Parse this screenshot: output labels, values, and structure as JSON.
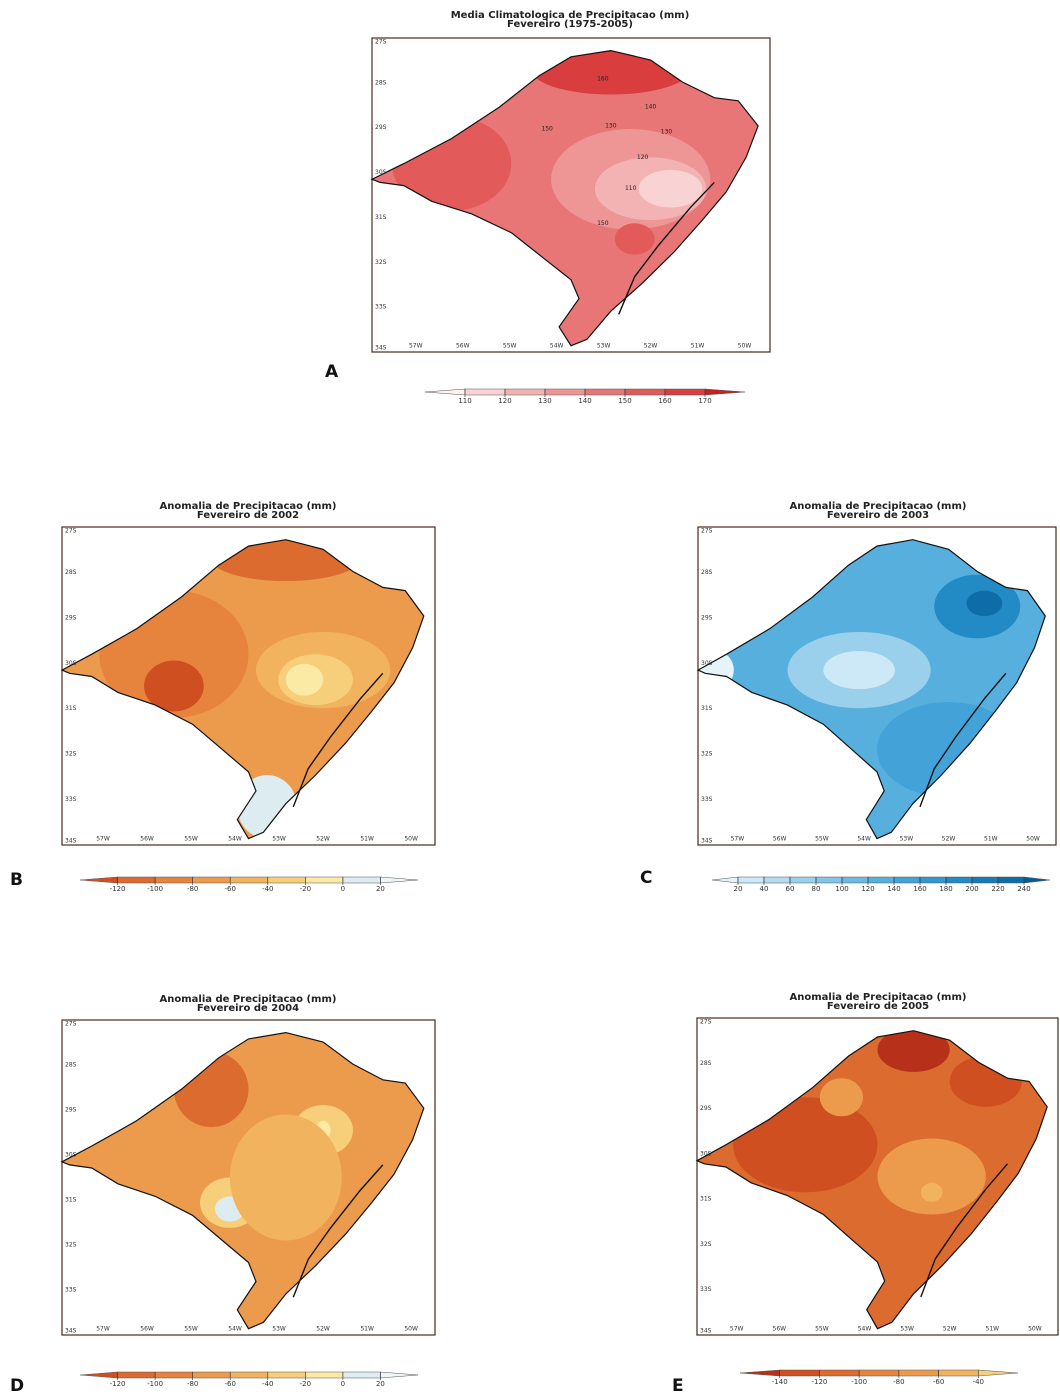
{
  "axes": {
    "lat": [
      "27S",
      "28S",
      "29S",
      "30S",
      "31S",
      "32S",
      "33S",
      "34S"
    ],
    "lon": [
      "57W",
      "56W",
      "55W",
      "54W",
      "53W",
      "52W",
      "51W",
      "50W"
    ]
  },
  "panels": [
    {
      "label": "A",
      "title": [
        "Media Climatologica de Precipitacao (mm)",
        "Fevereiro (1975-2005)"
      ],
      "colorbar": {
        "ticks": [
          110,
          120,
          130,
          140,
          150,
          160,
          170
        ],
        "colors": [
          "#fdf1f1",
          "#f9d3d3",
          "#f4b3b3",
          "#ee9595",
          "#e87676",
          "#e25a5a",
          "#d93d3d",
          "#c82020"
        ]
      },
      "contour_labels": [
        160,
        150,
        140,
        130,
        130,
        120,
        110,
        150
      ]
    },
    {
      "label": "B",
      "title": [
        "Anomalia de Precipitacao (mm)",
        "Fevereiro de 2002"
      ],
      "colorbar": {
        "ticks": [
          -120,
          -100,
          -80,
          -60,
          -40,
          -20,
          0,
          20
        ],
        "colors": [
          "#cf4f20",
          "#dc6b2f",
          "#e6843e",
          "#ec9b4d",
          "#f2b35e",
          "#f7cf7a",
          "#fbe9a6",
          "#dcecf1",
          "#eef6f8"
        ]
      }
    },
    {
      "label": "C",
      "title": [
        "Anomalia de Precipitacao (mm)",
        "Fevereiro de 2003"
      ],
      "colorbar": {
        "ticks": [
          20,
          40,
          60,
          80,
          100,
          120,
          140,
          160,
          180,
          200,
          220,
          240
        ],
        "colors": [
          "#e6f3fa",
          "#cde8f6",
          "#b3dcf1",
          "#9ad0ec",
          "#82c5e8",
          "#6cbae3",
          "#57afde",
          "#43a3d8",
          "#3197cf",
          "#228ac4",
          "#167cb6",
          "#0e6da6",
          "#075d93"
        ]
      }
    },
    {
      "label": "D",
      "title": [
        "Anomalia de Precipitacao (mm)",
        "Fevereiro de 2004"
      ],
      "colorbar": {
        "ticks": [
          -120,
          -100,
          -80,
          -60,
          -40,
          -20,
          0,
          20
        ],
        "colors": [
          "#cf4f20",
          "#dc6b2f",
          "#e6843e",
          "#ec9b4d",
          "#f2b35e",
          "#f7cf7a",
          "#fbe9a6",
          "#dcecf1",
          "#eef6f8"
        ]
      }
    },
    {
      "label": "E",
      "title": [
        "Anomalia de Precipitacao (mm)",
        "Fevereiro de 2005"
      ],
      "colorbar": {
        "ticks": [
          -140,
          -120,
          -100,
          -80,
          -60,
          -40
        ],
        "colors": [
          "#b7301a",
          "#cf4f20",
          "#dc6b2f",
          "#e6843e",
          "#ec9b4d",
          "#f2b35e",
          "#f7cf7a"
        ]
      }
    }
  ]
}
